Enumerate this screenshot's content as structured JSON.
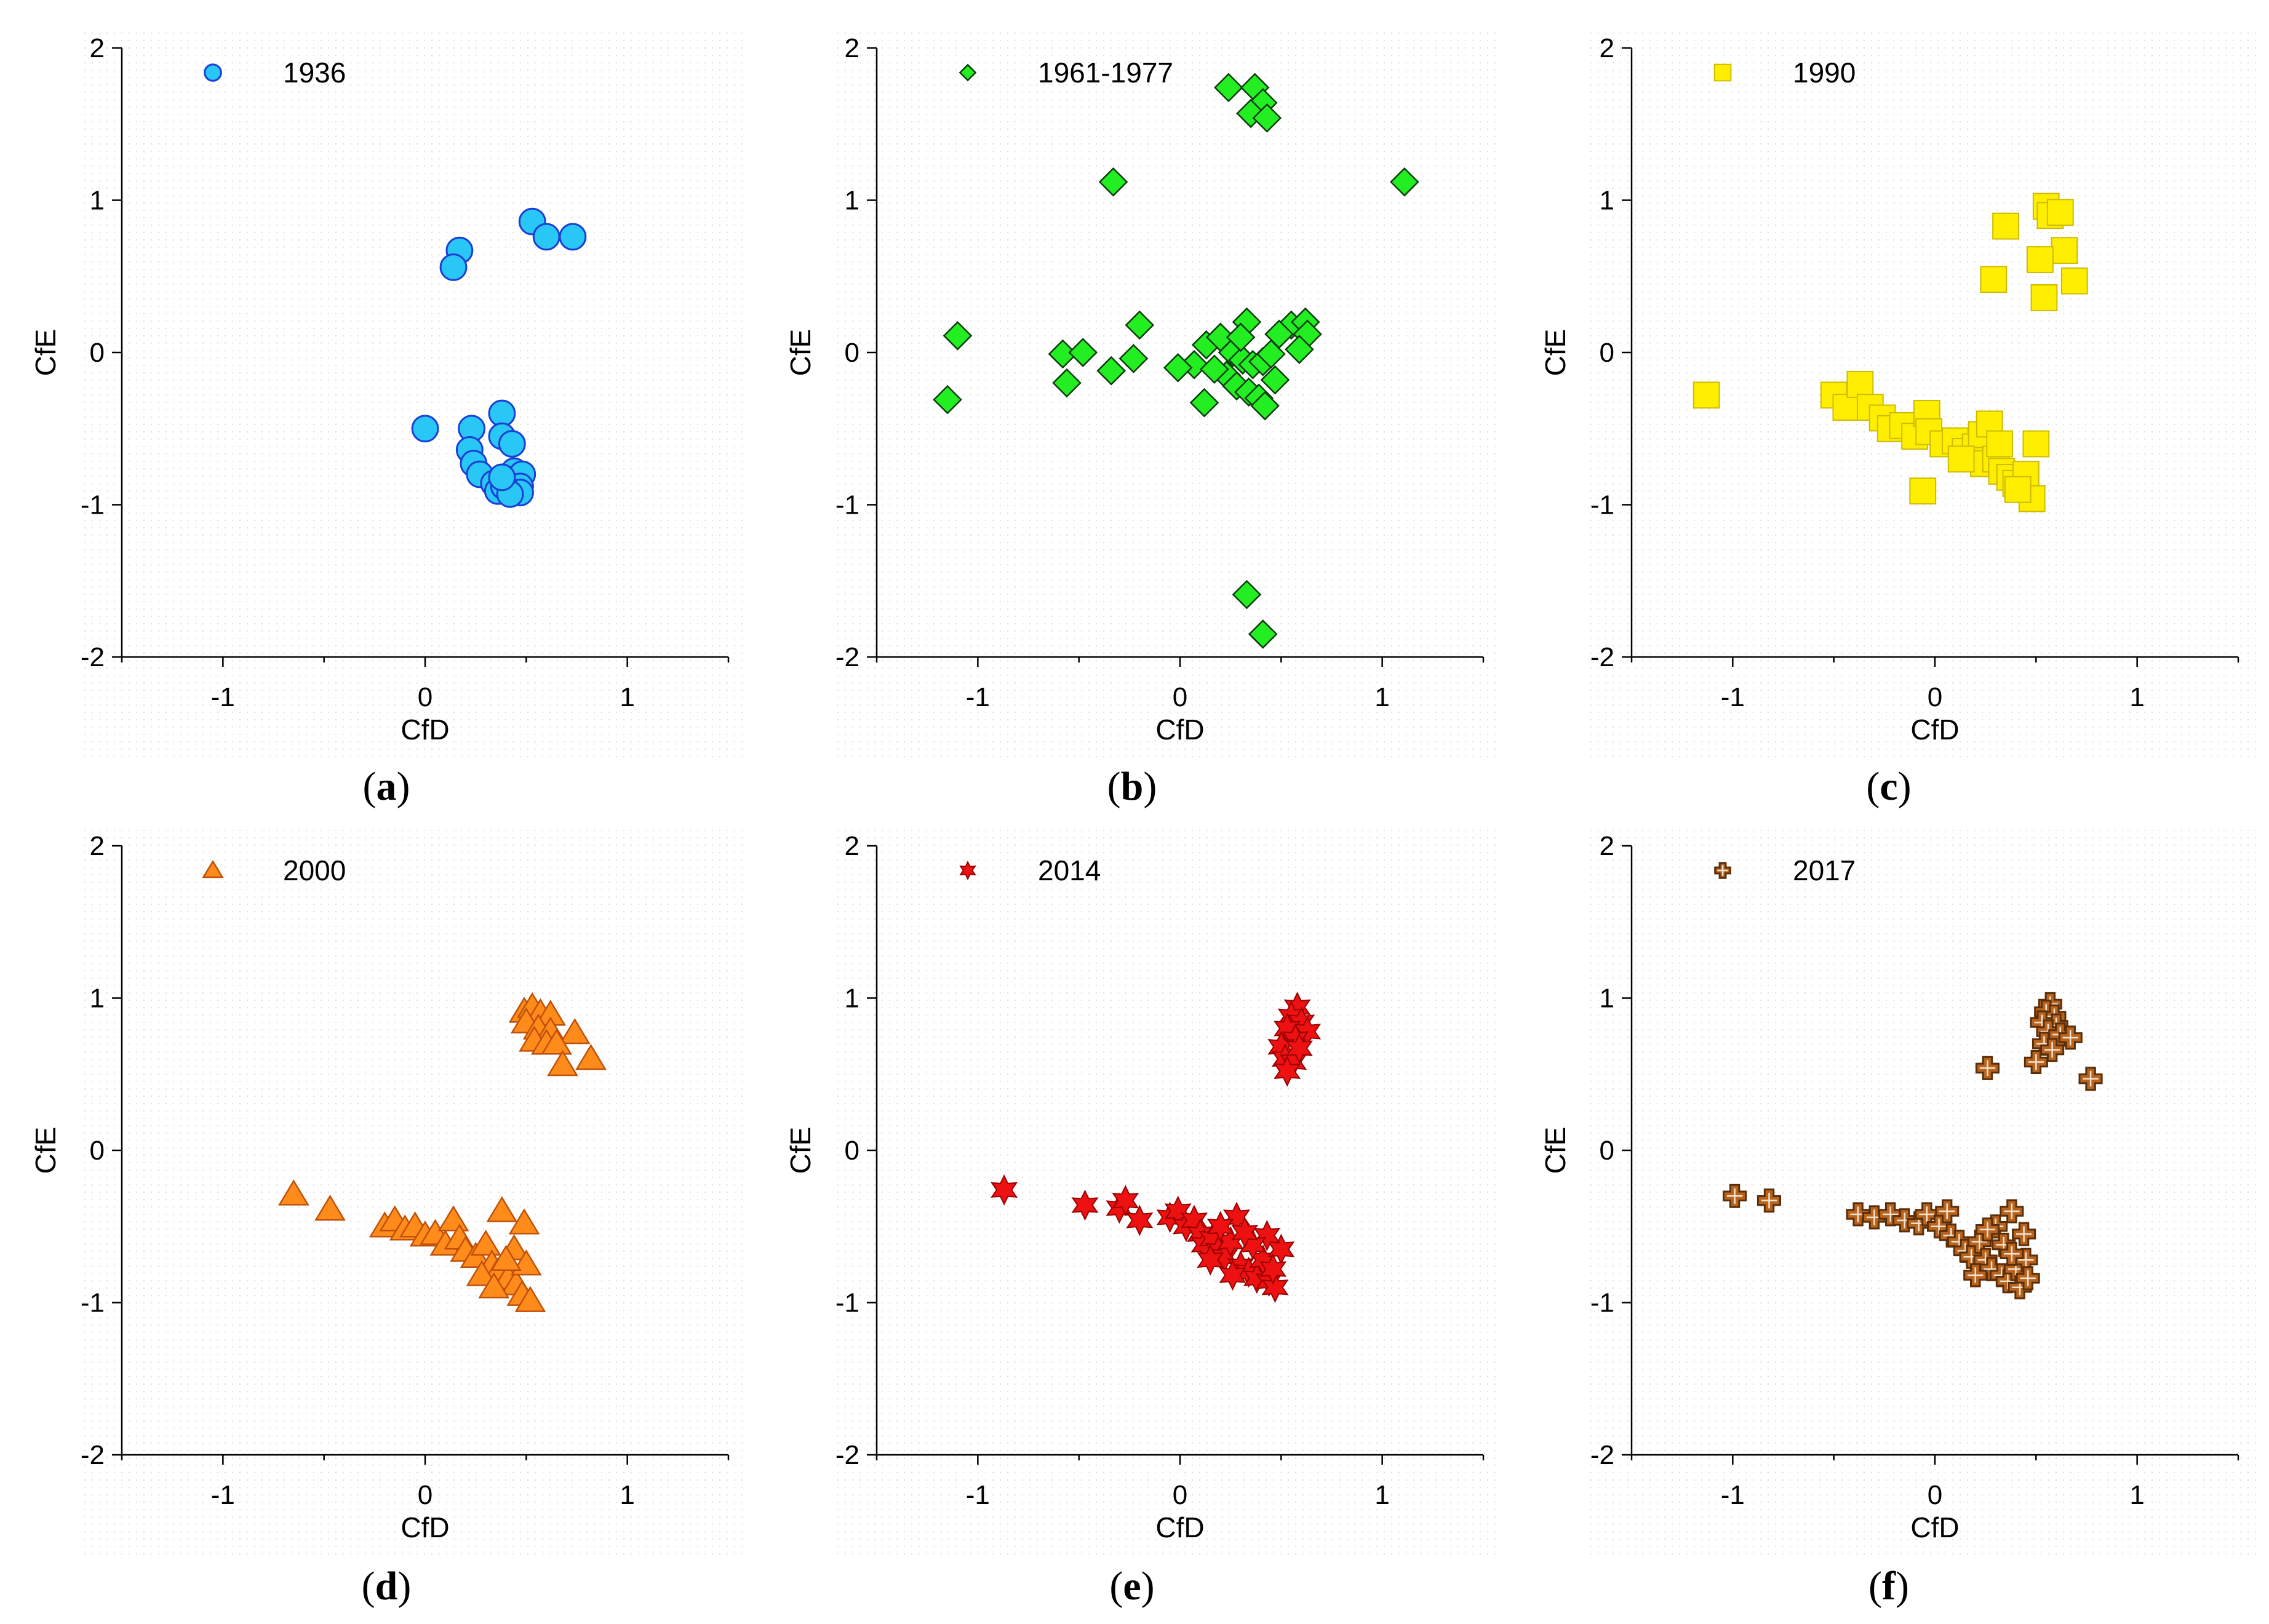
{
  "chart_data": [
    {
      "type": "scatter",
      "caption": "a",
      "xlabel": "CfD",
      "ylabel": "CfE",
      "xlim": [
        -1.5,
        1.5
      ],
      "ylim": [
        -2,
        2
      ],
      "xticks": [
        "-1",
        "0",
        "1"
      ],
      "yticks": [
        "2",
        "1",
        "0",
        "-1",
        "-2"
      ],
      "legend": "top-left",
      "series": [
        {
          "name": "1936",
          "marker": "circle",
          "fill": "#29c7f5",
          "stroke": "#1a3fd6",
          "points": [
            [
              0.17,
              0.67
            ],
            [
              0.14,
              0.56
            ],
            [
              0.53,
              0.86
            ],
            [
              0.6,
              0.76
            ],
            [
              0.73,
              0.76
            ],
            [
              0.0,
              -0.5
            ],
            [
              0.23,
              -0.5
            ],
            [
              0.38,
              -0.4
            ],
            [
              0.38,
              -0.55
            ],
            [
              0.43,
              -0.6
            ],
            [
              0.22,
              -0.64
            ],
            [
              0.24,
              -0.73
            ],
            [
              0.27,
              -0.8
            ],
            [
              0.34,
              -0.86
            ],
            [
              0.36,
              -0.91
            ],
            [
              0.4,
              -0.84
            ],
            [
              0.44,
              -0.78
            ],
            [
              0.48,
              -0.8
            ],
            [
              0.47,
              -0.88
            ],
            [
              0.47,
              -0.92
            ],
            [
              0.39,
              -0.88
            ],
            [
              0.42,
              -0.93
            ],
            [
              0.38,
              -0.82
            ]
          ]
        }
      ]
    },
    {
      "type": "scatter",
      "caption": "b",
      "xlabel": "CfD",
      "ylabel": "CfE",
      "xlim": [
        -1.5,
        1.5
      ],
      "ylim": [
        -2,
        2
      ],
      "xticks": [
        "-1",
        "0",
        "1"
      ],
      "yticks": [
        "2",
        "1",
        "0",
        "-1",
        "-2"
      ],
      "legend": "top-left",
      "series": [
        {
          "name": "1961-1977",
          "marker": "diamond",
          "fill": "#22ee22",
          "stroke": "#0b3a0b",
          "points": [
            [
              0.24,
              1.74
            ],
            [
              0.37,
              1.74
            ],
            [
              0.41,
              1.64
            ],
            [
              0.35,
              1.57
            ],
            [
              0.43,
              1.54
            ],
            [
              -0.33,
              1.12
            ],
            [
              1.11,
              1.12
            ],
            [
              -1.1,
              0.11
            ],
            [
              -1.15,
              -0.31
            ],
            [
              -0.58,
              -0.01
            ],
            [
              -0.48,
              0.0
            ],
            [
              -0.56,
              -0.2
            ],
            [
              -0.34,
              -0.12
            ],
            [
              -0.23,
              -0.04
            ],
            [
              -0.2,
              0.18
            ],
            [
              0.33,
              0.2
            ],
            [
              0.55,
              0.18
            ],
            [
              0.62,
              0.2
            ],
            [
              0.63,
              0.12
            ],
            [
              0.59,
              0.02
            ],
            [
              0.13,
              0.05
            ],
            [
              0.2,
              0.1
            ],
            [
              0.26,
              0.0
            ],
            [
              0.31,
              -0.05
            ],
            [
              0.36,
              -0.08
            ],
            [
              0.41,
              -0.06
            ],
            [
              0.45,
              -0.01
            ],
            [
              0.49,
              0.12
            ],
            [
              0.23,
              -0.15
            ],
            [
              0.28,
              -0.22
            ],
            [
              0.34,
              -0.26
            ],
            [
              0.39,
              -0.3
            ],
            [
              0.42,
              -0.35
            ],
            [
              0.12,
              -0.33
            ],
            [
              0.07,
              -0.08
            ],
            [
              0.17,
              -0.11
            ],
            [
              0.3,
              0.1
            ],
            [
              0.47,
              -0.18
            ],
            [
              -0.01,
              -0.1
            ],
            [
              0.33,
              -1.59
            ],
            [
              0.41,
              -1.85
            ]
          ]
        }
      ]
    },
    {
      "type": "scatter",
      "caption": "c",
      "xlabel": "CfD",
      "ylabel": "CfE",
      "xlim": [
        -1.5,
        1.5
      ],
      "ylim": [
        -2,
        2
      ],
      "xticks": [
        "-1",
        "0",
        "1"
      ],
      "yticks": [
        "2",
        "1",
        "0",
        "-1",
        "-2"
      ],
      "legend": "top-left",
      "series": [
        {
          "name": "1990",
          "marker": "square",
          "fill": "#ffee00",
          "stroke": "#ccbb00",
          "points": [
            [
              0.55,
              0.96
            ],
            [
              0.57,
              0.9
            ],
            [
              0.62,
              0.92
            ],
            [
              0.35,
              0.83
            ],
            [
              0.64,
              0.67
            ],
            [
              0.52,
              0.61
            ],
            [
              0.69,
              0.47
            ],
            [
              0.29,
              0.48
            ],
            [
              0.54,
              0.36
            ],
            [
              -1.13,
              -0.28
            ],
            [
              -0.5,
              -0.28
            ],
            [
              -0.44,
              -0.36
            ],
            [
              -0.37,
              -0.21
            ],
            [
              -0.32,
              -0.36
            ],
            [
              -0.26,
              -0.43
            ],
            [
              -0.22,
              -0.5
            ],
            [
              -0.16,
              -0.48
            ],
            [
              -0.1,
              -0.55
            ],
            [
              -0.04,
              -0.4
            ],
            [
              -0.03,
              -0.52
            ],
            [
              0.04,
              -0.6
            ],
            [
              0.1,
              -0.58
            ],
            [
              0.15,
              -0.65
            ],
            [
              0.2,
              -0.62
            ],
            [
              0.23,
              -0.54
            ],
            [
              0.27,
              -0.47
            ],
            [
              0.24,
              -0.73
            ],
            [
              0.3,
              -0.7
            ],
            [
              0.33,
              -0.78
            ],
            [
              0.37,
              -0.82
            ],
            [
              0.4,
              -0.86
            ],
            [
              0.45,
              -0.8
            ],
            [
              0.5,
              -0.6
            ],
            [
              0.48,
              -0.96
            ],
            [
              0.41,
              -0.9
            ],
            [
              0.32,
              -0.6
            ],
            [
              -0.06,
              -0.91
            ],
            [
              0.13,
              -0.7
            ]
          ]
        }
      ]
    },
    {
      "type": "scatter",
      "caption": "d",
      "xlabel": "CfD",
      "ylabel": "CfE",
      "xlim": [
        -1.5,
        1.5
      ],
      "ylim": [
        -2,
        2
      ],
      "xticks": [
        "-1",
        "0",
        "1"
      ],
      "yticks": [
        "2",
        "1",
        "0",
        "-1",
        "-2"
      ],
      "legend": "top-left",
      "series": [
        {
          "name": "2000",
          "marker": "triangle",
          "fill": "#ff8c1a",
          "stroke": "#c0500a",
          "points": [
            [
              0.49,
              0.91
            ],
            [
              0.53,
              0.94
            ],
            [
              0.57,
              0.9
            ],
            [
              0.62,
              0.89
            ],
            [
              0.5,
              0.84
            ],
            [
              0.56,
              0.8
            ],
            [
              0.62,
              0.78
            ],
            [
              0.74,
              0.77
            ],
            [
              0.54,
              0.72
            ],
            [
              0.6,
              0.7
            ],
            [
              0.65,
              0.7
            ],
            [
              0.82,
              0.6
            ],
            [
              0.68,
              0.56
            ],
            [
              -0.65,
              -0.29
            ],
            [
              -0.47,
              -0.39
            ],
            [
              -0.2,
              -0.5
            ],
            [
              -0.15,
              -0.46
            ],
            [
              -0.1,
              -0.52
            ],
            [
              -0.05,
              -0.5
            ],
            [
              0.0,
              -0.56
            ],
            [
              0.05,
              -0.55
            ],
            [
              0.1,
              -0.62
            ],
            [
              0.14,
              -0.46
            ],
            [
              0.17,
              -0.58
            ],
            [
              0.2,
              -0.66
            ],
            [
              0.25,
              -0.7
            ],
            [
              0.3,
              -0.62
            ],
            [
              0.33,
              -0.75
            ],
            [
              0.36,
              -0.8
            ],
            [
              0.38,
              -0.4
            ],
            [
              0.41,
              -0.84
            ],
            [
              0.44,
              -0.65
            ],
            [
              0.45,
              -0.88
            ],
            [
              0.48,
              -0.95
            ],
            [
              0.5,
              -0.75
            ],
            [
              0.52,
              -0.99
            ],
            [
              0.49,
              -0.48
            ],
            [
              0.28,
              -0.82
            ],
            [
              0.34,
              -0.9
            ],
            [
              0.4,
              -0.72
            ]
          ]
        }
      ]
    },
    {
      "type": "scatter",
      "caption": "e",
      "xlabel": "CfD",
      "ylabel": "CfE",
      "xlim": [
        -1.5,
        1.5
      ],
      "ylim": [
        -2,
        2
      ],
      "xticks": [
        "-1",
        "0",
        "1"
      ],
      "yticks": [
        "2",
        "1",
        "0",
        "-1",
        "-2"
      ],
      "legend": "top-left",
      "series": [
        {
          "name": "2014",
          "marker": "star",
          "fill": "#ee1111",
          "stroke": "#9a0000",
          "points": [
            [
              0.58,
              0.94
            ],
            [
              0.55,
              0.88
            ],
            [
              0.6,
              0.84
            ],
            [
              0.53,
              0.8
            ],
            [
              0.63,
              0.78
            ],
            [
              0.57,
              0.73
            ],
            [
              0.5,
              0.68
            ],
            [
              0.52,
              0.6
            ],
            [
              0.56,
              0.58
            ],
            [
              0.53,
              0.52
            ],
            [
              0.59,
              0.67
            ],
            [
              -0.87,
              -0.26
            ],
            [
              -0.47,
              -0.36
            ],
            [
              -0.3,
              -0.38
            ],
            [
              -0.27,
              -0.33
            ],
            [
              -0.2,
              -0.46
            ],
            [
              -0.05,
              -0.44
            ],
            [
              -0.01,
              -0.4
            ],
            [
              0.03,
              -0.5
            ],
            [
              0.07,
              -0.46
            ],
            [
              0.1,
              -0.55
            ],
            [
              0.12,
              -0.62
            ],
            [
              0.16,
              -0.58
            ],
            [
              0.19,
              -0.66
            ],
            [
              0.22,
              -0.7
            ],
            [
              0.25,
              -0.6
            ],
            [
              0.28,
              -0.44
            ],
            [
              0.3,
              -0.76
            ],
            [
              0.34,
              -0.8
            ],
            [
              0.38,
              -0.84
            ],
            [
              0.41,
              -0.72
            ],
            [
              0.44,
              -0.86
            ],
            [
              0.47,
              -0.9
            ],
            [
              0.5,
              -0.65
            ],
            [
              0.43,
              -0.56
            ],
            [
              0.36,
              -0.62
            ],
            [
              0.32,
              -0.54
            ],
            [
              0.2,
              -0.5
            ],
            [
              0.26,
              -0.82
            ],
            [
              0.15,
              -0.72
            ],
            [
              0.46,
              -0.78
            ]
          ]
        }
      ]
    },
    {
      "type": "scatter",
      "caption": "f",
      "xlabel": "CfD",
      "ylabel": "CfE",
      "xlim": [
        -1.5,
        1.5
      ],
      "ylim": [
        -2,
        2
      ],
      "xticks": [
        "-1",
        "0",
        "1"
      ],
      "yticks": [
        "2",
        "1",
        "0",
        "-1",
        "-2"
      ],
      "legend": "top-left",
      "series": [
        {
          "name": "2017",
          "marker": "cross",
          "fill": "#b8641f",
          "stroke": "#5a2e08",
          "points": [
            [
              0.57,
              0.96
            ],
            [
              0.55,
              0.91
            ],
            [
              0.59,
              0.88
            ],
            [
              0.53,
              0.84
            ],
            [
              0.6,
              0.82
            ],
            [
              0.56,
              0.78
            ],
            [
              0.62,
              0.76
            ],
            [
              0.67,
              0.74
            ],
            [
              0.54,
              0.7
            ],
            [
              0.58,
              0.66
            ],
            [
              0.5,
              0.58
            ],
            [
              0.26,
              0.54
            ],
            [
              0.77,
              0.47
            ],
            [
              -0.99,
              -0.3
            ],
            [
              -0.82,
              -0.33
            ],
            [
              -0.38,
              -0.42
            ],
            [
              -0.3,
              -0.44
            ],
            [
              -0.22,
              -0.42
            ],
            [
              -0.15,
              -0.46
            ],
            [
              -0.08,
              -0.48
            ],
            [
              -0.04,
              -0.42
            ],
            [
              0.02,
              -0.5
            ],
            [
              0.06,
              -0.4
            ],
            [
              0.08,
              -0.56
            ],
            [
              0.12,
              -0.6
            ],
            [
              0.15,
              -0.66
            ],
            [
              0.18,
              -0.7
            ],
            [
              0.22,
              -0.6
            ],
            [
              0.25,
              -0.72
            ],
            [
              0.28,
              -0.78
            ],
            [
              0.3,
              -0.5
            ],
            [
              0.33,
              -0.82
            ],
            [
              0.36,
              -0.86
            ],
            [
              0.38,
              -0.4
            ],
            [
              0.4,
              -0.78
            ],
            [
              0.42,
              -0.9
            ],
            [
              0.45,
              -0.72
            ],
            [
              0.46,
              -0.84
            ],
            [
              0.44,
              -0.55
            ],
            [
              0.34,
              -0.62
            ],
            [
              0.26,
              -0.52
            ],
            [
              0.2,
              -0.82
            ],
            [
              0.38,
              -0.68
            ]
          ]
        }
      ]
    }
  ]
}
